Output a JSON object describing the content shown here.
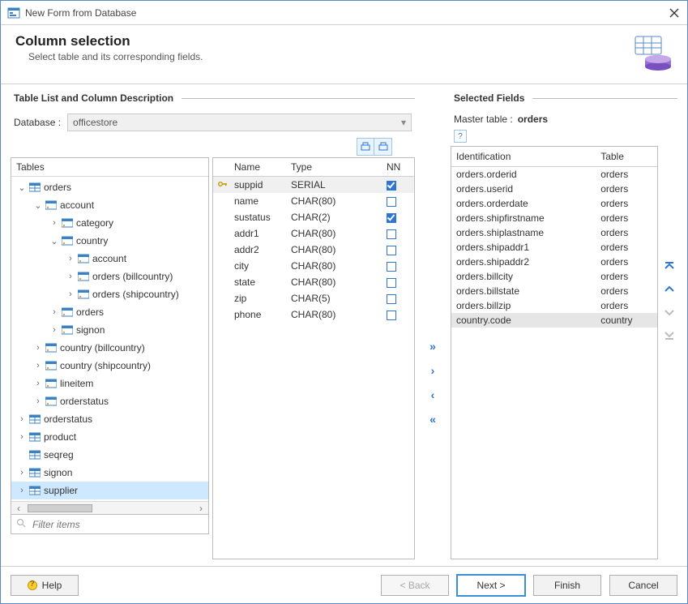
{
  "window": {
    "title": "New Form from Database"
  },
  "header": {
    "title": "Column selection",
    "subtitle": "Select table and its corresponding fields."
  },
  "left": {
    "group_label": "Table List and Column Description",
    "database_label": "Database :",
    "database_value": "officestore",
    "tables_header": "Tables",
    "filter_placeholder": "Filter items",
    "tree": [
      {
        "label": "orders",
        "exp": true,
        "depth": 0,
        "icon": "grid",
        "expandable": true,
        "children": [
          {
            "label": "account",
            "exp": true,
            "depth": 1,
            "icon": "link",
            "expandable": true,
            "children": [
              {
                "label": "category",
                "exp": false,
                "depth": 2,
                "icon": "link",
                "expandable": true
              },
              {
                "label": "country",
                "exp": true,
                "depth": 2,
                "icon": "link",
                "expandable": true,
                "children": [
                  {
                    "label": "account",
                    "exp": false,
                    "depth": 3,
                    "icon": "link",
                    "expandable": true
                  },
                  {
                    "label": "orders (billcountry)",
                    "exp": false,
                    "depth": 3,
                    "icon": "link",
                    "expandable": true
                  },
                  {
                    "label": "orders (shipcountry)",
                    "exp": false,
                    "depth": 3,
                    "icon": "link",
                    "expandable": true
                  }
                ]
              },
              {
                "label": "orders",
                "exp": false,
                "depth": 2,
                "icon": "link",
                "expandable": true
              },
              {
                "label": "signon",
                "exp": false,
                "depth": 2,
                "icon": "link",
                "expandable": true
              }
            ]
          },
          {
            "label": "country (billcountry)",
            "exp": false,
            "depth": 1,
            "icon": "link",
            "expandable": true
          },
          {
            "label": "country (shipcountry)",
            "exp": false,
            "depth": 1,
            "icon": "link",
            "expandable": true
          },
          {
            "label": "lineitem",
            "exp": false,
            "depth": 1,
            "icon": "link",
            "expandable": true
          },
          {
            "label": "orderstatus",
            "exp": false,
            "depth": 1,
            "icon": "link",
            "expandable": true
          }
        ]
      },
      {
        "label": "orderstatus",
        "exp": false,
        "depth": 0,
        "icon": "grid",
        "expandable": true
      },
      {
        "label": "product",
        "exp": false,
        "depth": 0,
        "icon": "grid",
        "expandable": true
      },
      {
        "label": "seqreg",
        "exp": false,
        "depth": 0,
        "icon": "grid",
        "expandable": false
      },
      {
        "label": "signon",
        "exp": false,
        "depth": 0,
        "icon": "grid",
        "expandable": true
      },
      {
        "label": "supplier",
        "exp": false,
        "depth": 0,
        "icon": "grid",
        "expandable": true,
        "selected": true
      }
    ],
    "columns": {
      "hdr_name": "Name",
      "hdr_type": "Type",
      "hdr_nn": "NN",
      "rows": [
        {
          "name": "suppid",
          "type": "SERIAL",
          "nn": true,
          "key": true,
          "sel": true
        },
        {
          "name": "name",
          "type": "CHAR(80)",
          "nn": false
        },
        {
          "name": "sustatus",
          "type": "CHAR(2)",
          "nn": true
        },
        {
          "name": "addr1",
          "type": "CHAR(80)",
          "nn": false
        },
        {
          "name": "addr2",
          "type": "CHAR(80)",
          "nn": false
        },
        {
          "name": "city",
          "type": "CHAR(80)",
          "nn": false
        },
        {
          "name": "state",
          "type": "CHAR(80)",
          "nn": false
        },
        {
          "name": "zip",
          "type": "CHAR(5)",
          "nn": false
        },
        {
          "name": "phone",
          "type": "CHAR(80)",
          "nn": false
        }
      ]
    }
  },
  "right": {
    "group_label": "Selected Fields",
    "master_label": "Master table :",
    "master_value": "orders",
    "hdr_id": "Identification",
    "hdr_table": "Table",
    "rows": [
      {
        "id": "orders.orderid",
        "table": "orders"
      },
      {
        "id": "orders.userid",
        "table": "orders"
      },
      {
        "id": "orders.orderdate",
        "table": "orders"
      },
      {
        "id": "orders.shipfirstname",
        "table": "orders"
      },
      {
        "id": "orders.shiplastname",
        "table": "orders"
      },
      {
        "id": "orders.shipaddr1",
        "table": "orders"
      },
      {
        "id": "orders.shipaddr2",
        "table": "orders"
      },
      {
        "id": "orders.billcity",
        "table": "orders"
      },
      {
        "id": "orders.billstate",
        "table": "orders"
      },
      {
        "id": "orders.billzip",
        "table": "orders"
      },
      {
        "id": "country.code",
        "table": "country",
        "sel": true
      }
    ]
  },
  "footer": {
    "help": "Help",
    "back": "< Back",
    "next": "Next >",
    "finish": "Finish",
    "cancel": "Cancel"
  },
  "colors": {
    "accent": "#2e75d6",
    "selection": "#cde8ff",
    "panel_border": "#bcbcbc",
    "header_icon_top": "#8bbde6",
    "header_icon_bottom": "#7a4fbf"
  }
}
